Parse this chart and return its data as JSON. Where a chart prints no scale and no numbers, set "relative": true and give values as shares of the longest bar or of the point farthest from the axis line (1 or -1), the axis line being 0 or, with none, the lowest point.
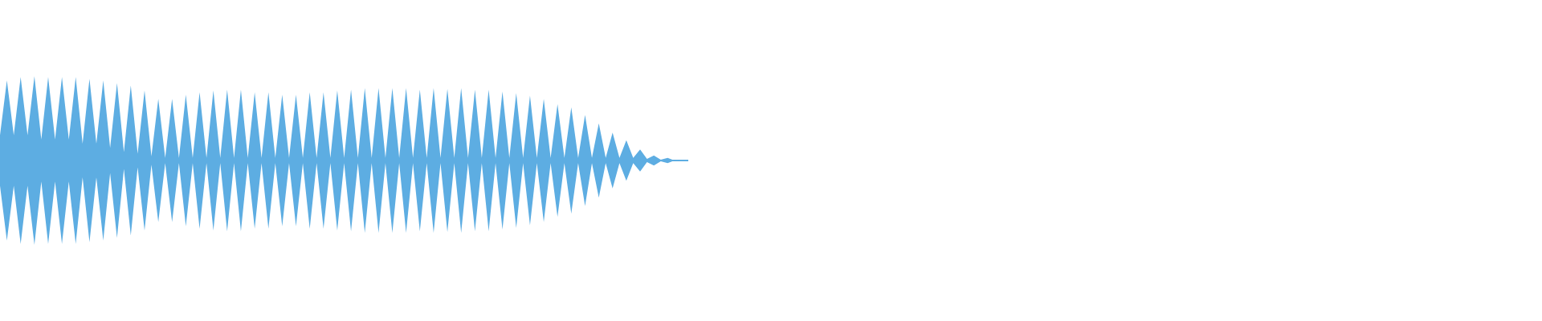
{
  "chart_data": {
    "type": "area",
    "relative": true,
    "ref_lines": [
      {
        "axis": "y",
        "value": 0,
        "color": "#5dade2"
      }
    ],
    "categories": [
      null,
      null,
      null,
      null,
      null,
      null,
      null,
      null,
      null,
      null,
      null,
      null,
      null,
      null,
      null,
      null,
      null,
      null,
      null,
      null,
      null,
      null,
      null,
      null,
      null,
      null,
      null,
      null,
      null,
      null,
      null,
      null,
      null,
      null,
      null,
      null,
      null,
      null,
      null,
      null,
      null,
      null,
      null,
      null,
      null,
      null,
      null,
      null,
      null,
      null,
      null,
      null,
      null,
      null,
      null,
      null,
      null,
      null,
      null,
      null,
      null,
      null,
      null,
      null,
      null,
      null,
      null,
      null,
      null,
      null,
      null,
      null,
      null,
      null,
      null,
      null,
      null,
      null,
      null,
      null,
      null,
      null,
      null,
      null,
      null,
      null,
      null,
      null,
      null,
      null,
      null,
      null,
      null,
      null,
      null,
      null,
      null,
      null,
      null,
      null,
      null
    ],
    "series": [
      {
        "color": "#5dade2",
        "values": [
          0.3,
          0.95,
          0.3,
          0.99,
          0.3,
          1,
          0.25,
          0.99,
          0.25,
          0.99,
          0.25,
          0.99,
          0.2,
          0.97,
          0.2,
          0.95,
          0.15,
          0.92,
          0.1,
          0.89,
          0.08,
          0.83,
          0.05,
          0.73,
          0.03,
          0.73,
          0.03,
          0.78,
          0.03,
          0.81,
          0.03,
          0.83,
          0.03,
          0.84,
          0.03,
          0.84,
          0.03,
          0.81,
          0.03,
          0.81,
          0.03,
          0.78,
          0.03,
          0.78,
          0.03,
          0.81,
          0.03,
          0.81,
          0.03,
          0.83,
          0.03,
          0.84,
          0.03,
          0.86,
          0.03,
          0.86,
          0.03,
          0.86,
          0.03,
          0.86,
          0.03,
          0.84,
          0.03,
          0.86,
          0.03,
          0.85,
          0.03,
          0.86,
          0.03,
          0.84,
          0.03,
          0.84,
          0.03,
          0.82,
          0.03,
          0.8,
          0.03,
          0.77,
          0.03,
          0.73,
          0.03,
          0.67,
          0.03,
          0.63,
          0.03,
          0.54,
          0.03,
          0.44,
          0.03,
          0.33,
          0.03,
          0.24,
          0.03,
          0.13,
          0.02,
          0.06,
          0.01,
          0.03,
          0,
          0.01,
          0.01
        ]
      },
      {
        "color": "#5dade2",
        "values": [
          -0.3,
          -0.95,
          -0.3,
          -0.99,
          -0.3,
          -1,
          -0.25,
          -0.99,
          -0.25,
          -0.99,
          -0.25,
          -0.99,
          -0.2,
          -0.97,
          -0.2,
          -0.95,
          -0.15,
          -0.92,
          -0.1,
          -0.89,
          -0.08,
          -0.83,
          -0.05,
          -0.73,
          -0.03,
          -0.73,
          -0.03,
          -0.78,
          -0.03,
          -0.81,
          -0.03,
          -0.83,
          -0.03,
          -0.84,
          -0.03,
          -0.84,
          -0.03,
          -0.81,
          -0.03,
          -0.81,
          -0.03,
          -0.78,
          -0.03,
          -0.78,
          -0.03,
          -0.81,
          -0.03,
          -0.81,
          -0.03,
          -0.83,
          -0.03,
          -0.84,
          -0.03,
          -0.86,
          -0.03,
          -0.86,
          -0.03,
          -0.86,
          -0.03,
          -0.86,
          -0.03,
          -0.84,
          -0.03,
          -0.86,
          -0.03,
          -0.85,
          -0.03,
          -0.86,
          -0.03,
          -0.84,
          -0.03,
          -0.84,
          -0.03,
          -0.82,
          -0.03,
          -0.8,
          -0.03,
          -0.77,
          -0.03,
          -0.73,
          -0.03,
          -0.67,
          -0.03,
          -0.63,
          -0.03,
          -0.54,
          -0.03,
          -0.44,
          -0.03,
          -0.33,
          -0.03,
          -0.24,
          -0.03,
          -0.13,
          -0.02,
          -0.06,
          -0.01,
          -0.03,
          0,
          -0.01,
          -0.01
        ]
      }
    ]
  }
}
